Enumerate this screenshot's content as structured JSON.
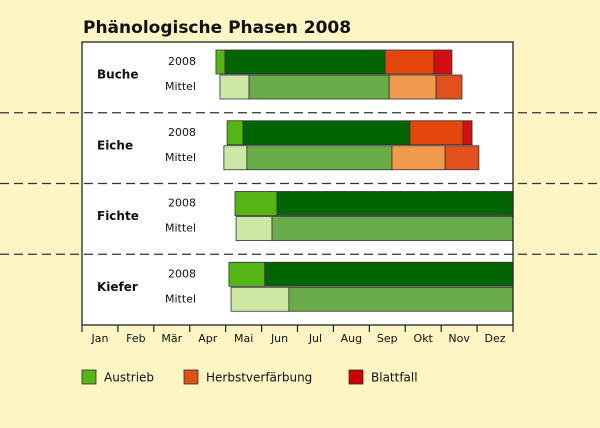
{
  "chart_data": {
    "type": "timeline",
    "title": "Phänologische Phasen 2008",
    "xlim": [
      0,
      12
    ],
    "xticks": [
      0,
      1,
      2,
      3,
      4,
      5,
      6,
      7,
      8,
      9,
      10,
      11,
      12
    ],
    "categories": [
      "Jan",
      "Feb",
      "Mär",
      "Apr",
      "Mai",
      "Jun",
      "Jul",
      "Aug",
      "Sep",
      "Okt",
      "Nov",
      "Dez"
    ],
    "groups": [
      {
        "name": "Buche",
        "rows": [
          {
            "label": "2008",
            "start": 3.73,
            "segments": [
              0.25,
              4.46,
              1.36,
              0.5
            ],
            "colors": [
              "#55b515",
              "#006400",
              "#e5460c",
              "#d10f10"
            ]
          },
          {
            "label": "Mittel",
            "start": 3.84,
            "segments": [
              0.81,
              3.9,
              1.31,
              0.72
            ],
            "colors": [
              "#cde8a6",
              "#6aab4a",
              "#f09a4e",
              "#e2501e"
            ]
          }
        ]
      },
      {
        "name": "Eiche",
        "rows": [
          {
            "label": "2008",
            "start": 4.04,
            "segments": [
              0.44,
              4.65,
              1.48,
              0.25
            ],
            "colors": [
              "#55b515",
              "#006400",
              "#e5460c",
              "#d10f10"
            ]
          },
          {
            "label": "Mittel",
            "start": 3.95,
            "segments": [
              0.64,
              4.04,
              1.48,
              0.94
            ],
            "colors": [
              "#cde8a6",
              "#6aab4a",
              "#f09a4e",
              "#e2501e"
            ]
          }
        ]
      },
      {
        "name": "Fichte",
        "rows": [
          {
            "label": "2008",
            "start": 4.26,
            "segments": [
              1.17,
              6.57
            ],
            "colors": [
              "#55b515",
              "#006400"
            ]
          },
          {
            "label": "Mittel",
            "start": 4.29,
            "segments": [
              1.0,
              6.71
            ],
            "colors": [
              "#cde8a6",
              "#6aab4a"
            ]
          }
        ]
      },
      {
        "name": "Kiefer",
        "rows": [
          {
            "label": "2008",
            "start": 4.09,
            "segments": [
              1.0,
              6.91
            ],
            "colors": [
              "#55b515",
              "#006400"
            ]
          },
          {
            "label": "Mittel",
            "start": 4.15,
            "segments": [
              1.61,
              6.24
            ],
            "colors": [
              "#cde8a6",
              "#6aab4a"
            ]
          }
        ]
      }
    ],
    "legend": [
      {
        "name": "Austrieb",
        "color": "#55b515"
      },
      {
        "name": "Herbstverfärbung",
        "color": "#e0501a"
      },
      {
        "name": "Blattfall",
        "color": "#cc0000"
      }
    ]
  }
}
